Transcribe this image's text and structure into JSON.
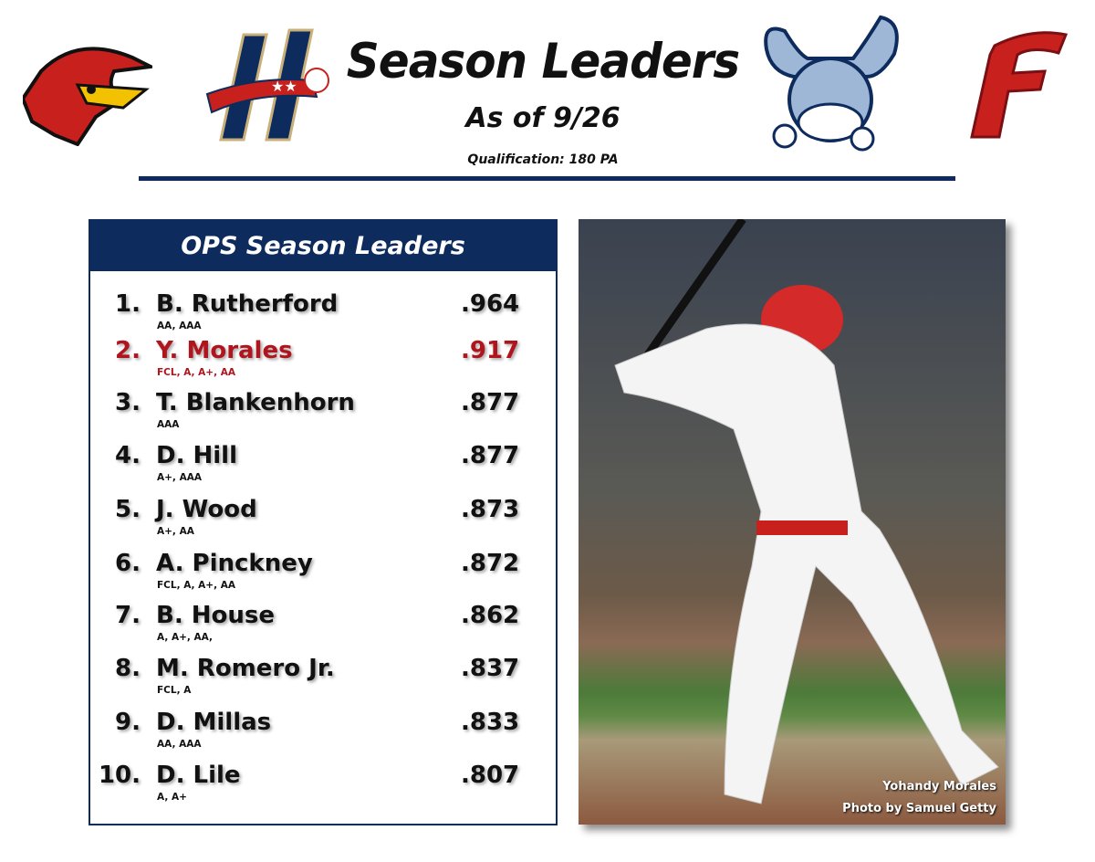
{
  "header": {
    "title": "Season Leaders",
    "as_of": "As of 9/26",
    "qualification": "Qualification: 180 PA"
  },
  "logos": [
    "rochester-red-wings-logo",
    "harrisburg-senators-logo",
    "wilmington-blue-rocks-logo",
    "fredericksburg-nationals-logo"
  ],
  "colors": {
    "navy": "#0d2b5c",
    "highlight": "#b0141c"
  },
  "leaderboard": {
    "title": "OPS Season Leaders",
    "rows": [
      {
        "rank": "1.",
        "name": "B. Rutherford",
        "levels": "AA, AAA",
        "value": ".964"
      },
      {
        "rank": "2.",
        "name": "Y. Morales",
        "levels": "FCL, A, A+, AA",
        "value": ".917",
        "highlight": true
      },
      {
        "rank": "3.",
        "name": "T. Blankenhorn",
        "levels": "AAA",
        "value": ".877"
      },
      {
        "rank": "4.",
        "name": "D. Hill",
        "levels": "A+, AAA",
        "value": ".877"
      },
      {
        "rank": "5.",
        "name": "J. Wood",
        "levels": "A+, AA",
        "value": ".873"
      },
      {
        "rank": "6.",
        "name": "A. Pinckney",
        "levels": "FCL, A, A+, AA",
        "value": ".872"
      },
      {
        "rank": "7.",
        "name": "B. House",
        "levels": "A, A+, AA,",
        "value": ".862"
      },
      {
        "rank": "8.",
        "name": "M. Romero Jr.",
        "levels": "FCL, A",
        "value": ".837"
      },
      {
        "rank": "9.",
        "name": "D. Millas",
        "levels": "AA, AAA",
        "value": ".833"
      },
      {
        "rank": "10.",
        "name": "D. Lile",
        "levels": "A, A+",
        "value": ".807"
      }
    ]
  },
  "photo": {
    "player": "Yohandy Morales",
    "credit": "Photo by Samuel Getty"
  }
}
